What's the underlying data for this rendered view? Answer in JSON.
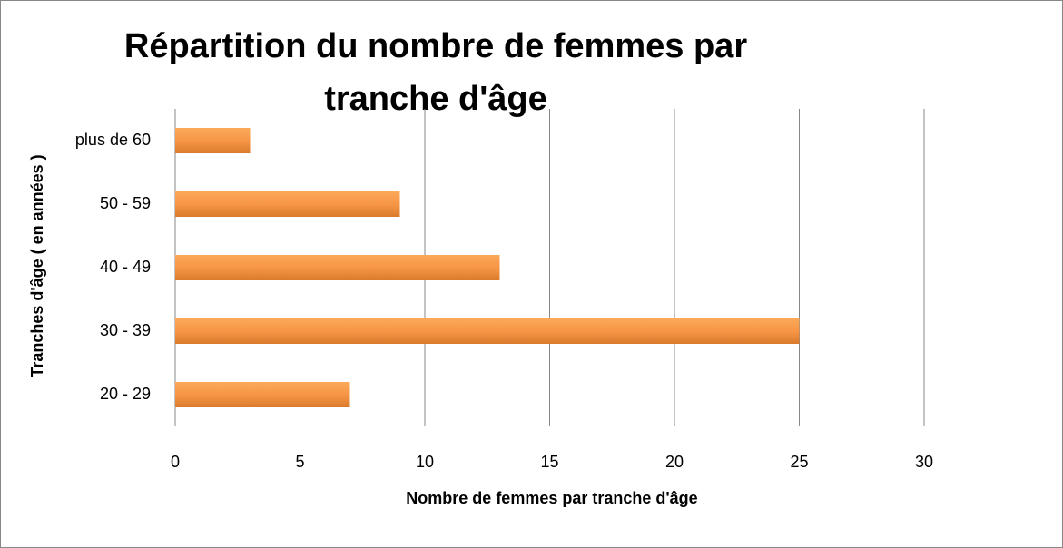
{
  "chart_data": {
    "type": "bar",
    "orientation": "horizontal",
    "title": "Répartition du nombre de femmes par tranche d'âge",
    "x_label": "Nombre de femmes par tranche d'âge",
    "y_label": "Tranches d'âge ( en années )",
    "categories": [
      "20 - 29",
      "30 - 39",
      "40 - 49",
      "50 - 59",
      "plus de 60"
    ],
    "values": [
      7,
      25,
      13,
      9,
      3
    ],
    "color": "#f79646",
    "xlim": [
      0,
      30
    ],
    "xticks": [
      0,
      5,
      10,
      15,
      20,
      25,
      30
    ],
    "grid": true
  }
}
